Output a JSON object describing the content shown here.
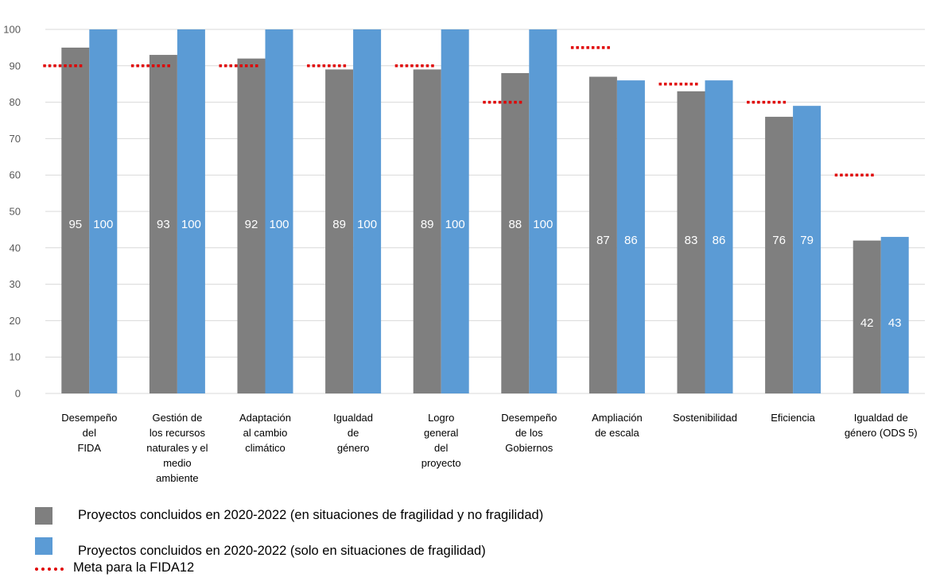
{
  "chart_data": {
    "type": "bar",
    "categories": [
      [
        "Desempeño",
        "del",
        "FIDA"
      ],
      [
        "Gestión de",
        "los recursos",
        "naturales y el",
        "medio",
        "ambiente"
      ],
      [
        "Adaptación",
        "al cambio",
        "climático"
      ],
      [
        "Igualdad",
        "de",
        "género"
      ],
      [
        "Logro",
        "general",
        "del",
        "proyecto"
      ],
      [
        "Desempeño",
        "de los",
        "Gobiernos"
      ],
      [
        "Ampliación",
        "de escala"
      ],
      [
        "Sostenibilidad"
      ],
      [
        "Eficiencia"
      ],
      [
        "Igualdad de",
        "género (ODS 5)"
      ]
    ],
    "series": [
      {
        "name": "Proyectos concluidos en 2020-2022 (en situaciones de fragilidad y no fragilidad)",
        "color": "#7f7f7f",
        "values": [
          95,
          93,
          92,
          89,
          89,
          88,
          87,
          83,
          76,
          42
        ],
        "labels": [
          "95",
          "93",
          "92",
          "89",
          "89",
          "88",
          "87",
          "83",
          "76",
          "42"
        ]
      },
      {
        "name": "Proyectos concluidos en 2020-2022 (solo en situaciones de fragilidad)",
        "color": "#5b9bd5",
        "values": [
          100,
          100,
          100,
          100,
          100,
          100,
          86,
          86,
          79,
          43
        ],
        "labels": [
          "100",
          "100",
          "100",
          "100",
          "100",
          "100",
          "86",
          "86",
          "79",
          "43"
        ]
      }
    ],
    "target": {
      "name": "Meta para la FIDA12",
      "color": "#e00000",
      "values": [
        90,
        90,
        90,
        90,
        90,
        80,
        95,
        85,
        80,
        60
      ]
    },
    "yticks": [
      "0",
      "10",
      "20",
      "30",
      "40",
      "50",
      "60",
      "70",
      "80",
      "90",
      "100"
    ],
    "ylim": [
      0,
      100
    ],
    "grid": true,
    "legend_position": "bottom-left"
  }
}
